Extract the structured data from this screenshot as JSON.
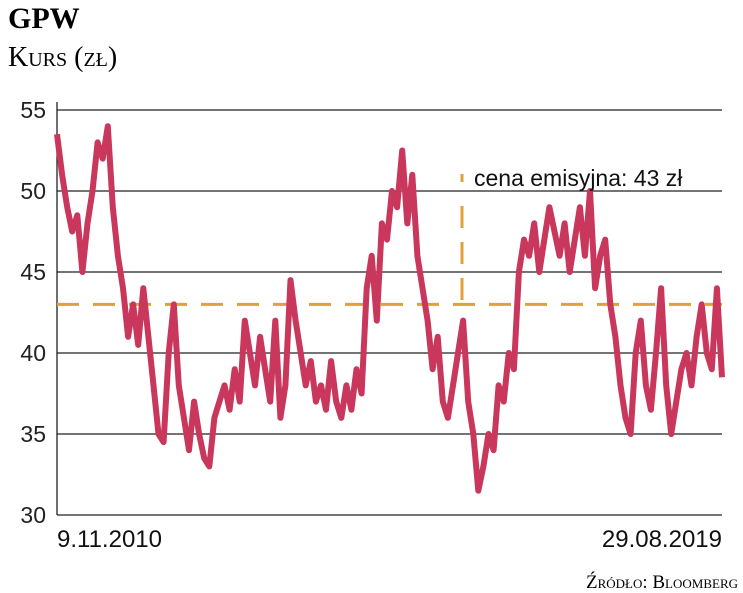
{
  "chart_data": {
    "type": "line",
    "title": "GPW",
    "subtitle": "Kurs (zł)",
    "source": "Źródło: Bloomberg",
    "categories": [
      "9.11.2010",
      null,
      null,
      null,
      null,
      null,
      null,
      null,
      null,
      null,
      null,
      null,
      null,
      null,
      null,
      null,
      null,
      null,
      null,
      null,
      null,
      null,
      null,
      null,
      null,
      null,
      null,
      null,
      null,
      null,
      null,
      null,
      null,
      null,
      null,
      null,
      null,
      null,
      null,
      null,
      null,
      null,
      null,
      null,
      null,
      null,
      null,
      null,
      null,
      null,
      null,
      null,
      null,
      null,
      null,
      null,
      null,
      null,
      null,
      null,
      null,
      null,
      null,
      null,
      null,
      null,
      null,
      null,
      null,
      null,
      null,
      null,
      null,
      null,
      null,
      null,
      null,
      null,
      null,
      null,
      null,
      null,
      null,
      null,
      null,
      null,
      null,
      null,
      null,
      null,
      null,
      null,
      null,
      null,
      null,
      null,
      null,
      null,
      null,
      null,
      null,
      null,
      null,
      null,
      null,
      null,
      null,
      null,
      null,
      null,
      null,
      null,
      null,
      null,
      null,
      null,
      null,
      null,
      null,
      null,
      null,
      null,
      null,
      null,
      null,
      null,
      null,
      null,
      null,
      null,
      null,
      "29.08.2019"
    ],
    "values": [
      53.5,
      51,
      49,
      47.5,
      48.5,
      45,
      48,
      50,
      53,
      52,
      54,
      49,
      46,
      44,
      41,
      43,
      40.5,
      44,
      41,
      38,
      35,
      34.5,
      40,
      43,
      38,
      36,
      34,
      37,
      35,
      33.5,
      33,
      36,
      37,
      38,
      36.5,
      39,
      37,
      42,
      40,
      38,
      41,
      39,
      37,
      42,
      36,
      38,
      44.5,
      42,
      40,
      38,
      39.5,
      37,
      38,
      36.5,
      39.5,
      37,
      36,
      38,
      36.5,
      39,
      37.5,
      44,
      46,
      42,
      48,
      47,
      50,
      49,
      52.5,
      48,
      51,
      46,
      44,
      42,
      39,
      41,
      37,
      36,
      38,
      40,
      42,
      37,
      35,
      31.5,
      33,
      35,
      34,
      38,
      37,
      40,
      39,
      45,
      47,
      46,
      48,
      45,
      47,
      49,
      47.5,
      46,
      48,
      45,
      47,
      49,
      46,
      50,
      44,
      46,
      47,
      43,
      41,
      38,
      36,
      35,
      40,
      42,
      38,
      36.5,
      40,
      44,
      38,
      35,
      37,
      39,
      40,
      38,
      41,
      43,
      40,
      39,
      44,
      38.5
    ],
    "color": "#c9375c",
    "ylim": [
      30,
      55
    ],
    "yticks": [
      30,
      35,
      40,
      45,
      50,
      55
    ],
    "grid": true,
    "reference_line": {
      "value": 43,
      "label": "cena emisyjna: 43 zł",
      "color": "#e0a03a"
    }
  }
}
